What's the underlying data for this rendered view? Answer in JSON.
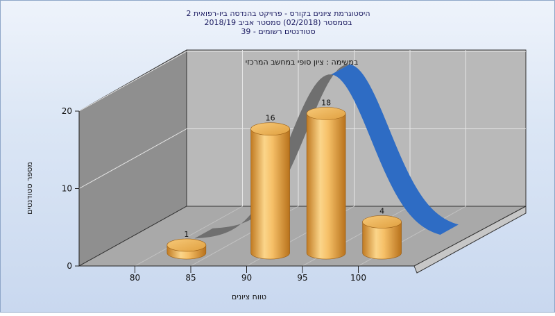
{
  "chart_data": {
    "type": "bar",
    "title_lines": [
      "היסטוגרמת ציונים בקורס - פרויקט בהנדסה ביו-רפואית 2",
      "בסמסטר  (02/2018)  סמסטר אביב 2018/19",
      "סטודנטים רשומים - 39"
    ],
    "subtitle": "במשימה : ציון סופי במחשב המרכזי",
    "xlabel": "טווח ציונים",
    "ylabel": "מספר סטודנטים",
    "x_ticks": [
      "80",
      "85",
      "90",
      "95",
      "100"
    ],
    "y_ticks": [
      "0",
      "10",
      "20"
    ],
    "ylim": [
      0,
      20
    ],
    "xlim": [
      75,
      105
    ],
    "categories": [
      82.5,
      90,
      95,
      100
    ],
    "values": [
      1,
      16,
      18,
      4
    ],
    "data_labels": [
      "1",
      "16",
      "18",
      "4"
    ],
    "curve": {
      "type": "normal-fit",
      "color": "#2e6cc4"
    },
    "bar_color": "#f3b85a"
  }
}
